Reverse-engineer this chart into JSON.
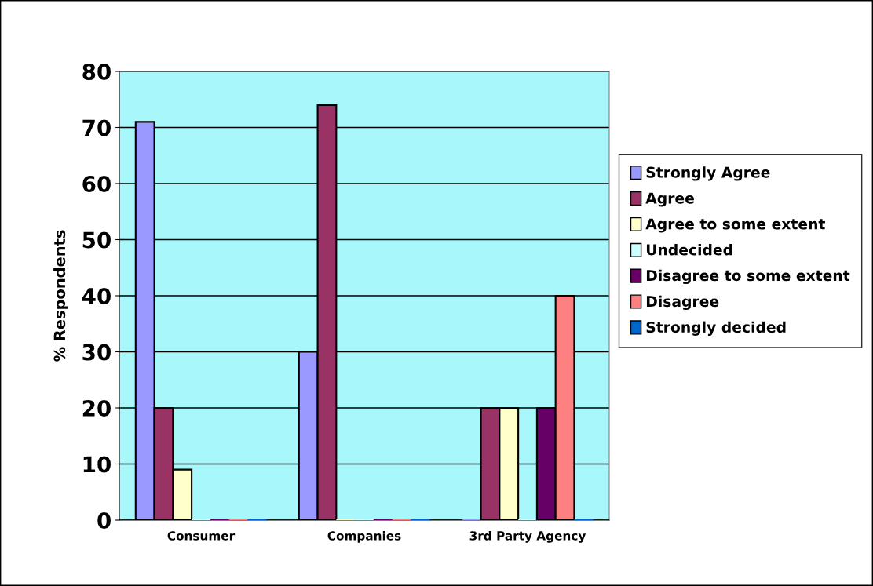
{
  "chart_data": {
    "type": "bar",
    "ylabel": "% Respondents",
    "categories": [
      "Consumer",
      "Companies",
      "3rd Party Agency"
    ],
    "series": [
      {
        "name": "Strongly Agree",
        "color": "#9999ff",
        "values": [
          71,
          30,
          0
        ]
      },
      {
        "name": "Agree",
        "color": "#993366",
        "values": [
          20,
          74,
          20
        ]
      },
      {
        "name": "Agree to some extent",
        "color": "#ffffcc",
        "values": [
          9,
          0,
          20
        ]
      },
      {
        "name": "Undecided",
        "color": "#ccffff",
        "values": [
          0,
          0,
          0
        ]
      },
      {
        "name": "Disagree to some extent",
        "color": "#660066",
        "values": [
          0,
          0,
          20
        ]
      },
      {
        "name": "Disagree",
        "color": "#ff8080",
        "values": [
          0,
          0,
          40
        ]
      },
      {
        "name": "Strongly decided",
        "color": "#0066cc",
        "values": [
          0,
          0,
          0
        ]
      }
    ],
    "ylim": [
      0,
      80
    ],
    "yticks": [
      0,
      10,
      20,
      30,
      40,
      50,
      60,
      70,
      80
    ],
    "grid": "y",
    "legend": "right"
  }
}
